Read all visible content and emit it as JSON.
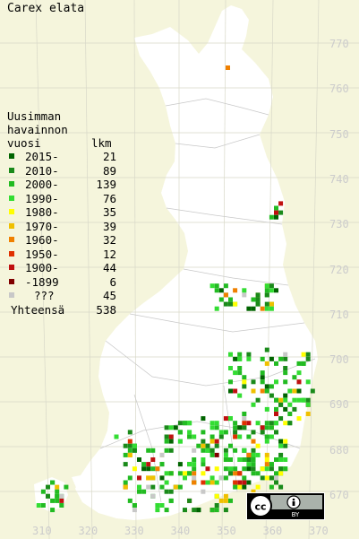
{
  "title": "Carex elata",
  "legend": {
    "header1": "Uusimman",
    "header2": "havainnon",
    "header3_left": "vuosi",
    "header3_right": "lkm",
    "items": [
      {
        "label": "2015-",
        "count": "21",
        "color": "#006400"
      },
      {
        "label": "2010-",
        "count": "89",
        "color": "#1a8a1a"
      },
      {
        "label": "2000-",
        "count": "139",
        "color": "#22bb22"
      },
      {
        "label": "1990-",
        "count": "76",
        "color": "#33dd33"
      },
      {
        "label": "1980-",
        "count": "35",
        "color": "#ffff00"
      },
      {
        "label": "1970-",
        "count": "39",
        "color": "#f0c000"
      },
      {
        "label": "1960-",
        "count": "32",
        "color": "#f08000"
      },
      {
        "label": "1950-",
        "count": "12",
        "color": "#e03000"
      },
      {
        "label": "1900-",
        "count": "44",
        "color": "#c01010"
      },
      {
        "label": "-1899",
        "count": "6",
        "color": "#800000"
      },
      {
        "label": "???",
        "count": "45",
        "color": "#c8c8c8"
      }
    ],
    "total_label": "Yhteensä",
    "total_count": "538"
  },
  "y_ticks": [
    "770",
    "760",
    "750",
    "740",
    "730",
    "720",
    "710",
    "700",
    "690",
    "680",
    "670"
  ],
  "x_ticks": [
    "310",
    "320",
    "330",
    "340",
    "350",
    "360",
    "370"
  ],
  "license_badge": {
    "icon": "cc-by-icon",
    "text": "BY"
  }
}
